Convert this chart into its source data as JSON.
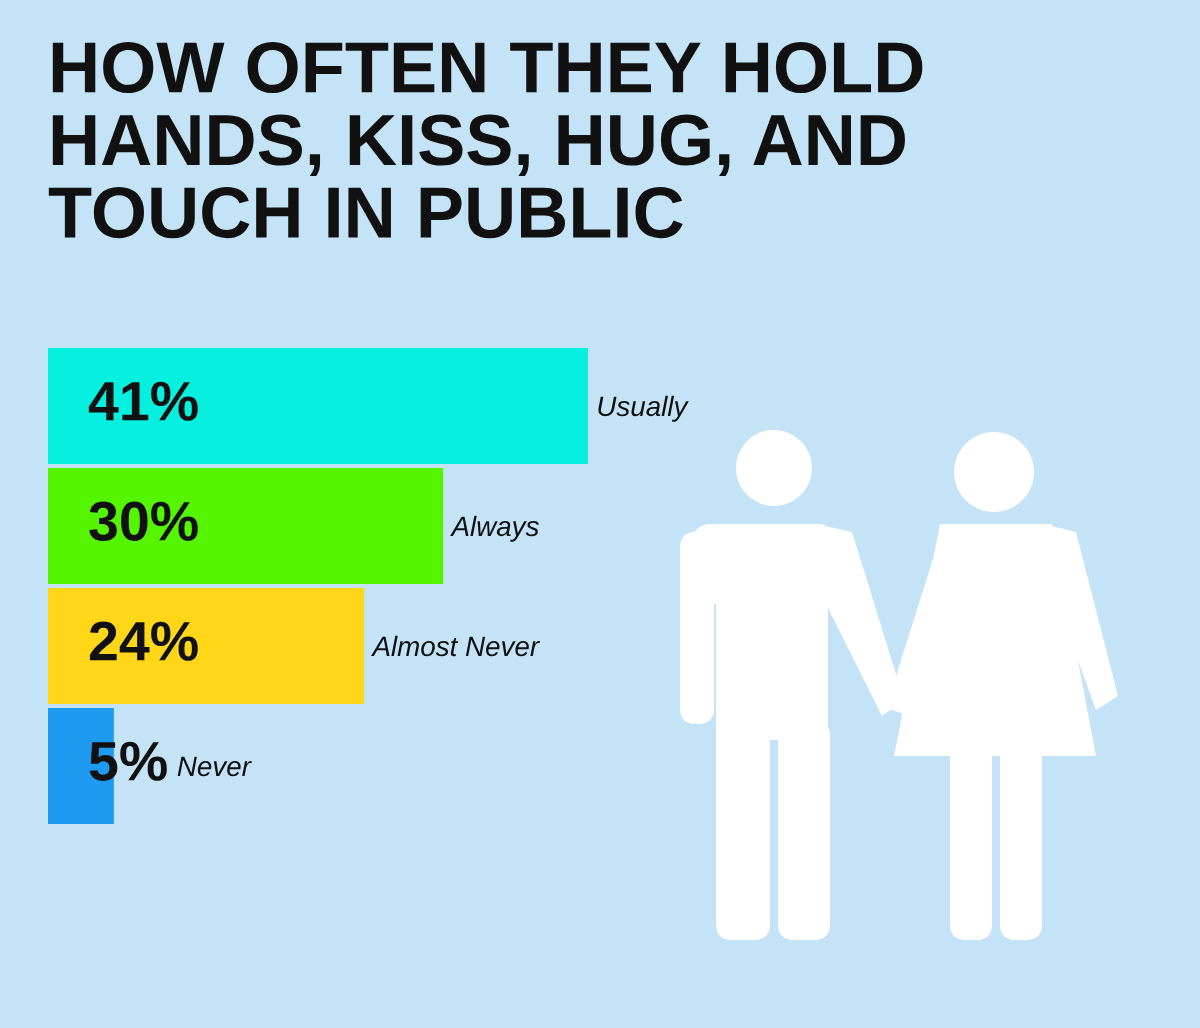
{
  "chart_data": {
    "type": "bar",
    "orientation": "horizontal",
    "title": "HOW OFTEN THEY HOLD\nHANDS, KISS, HUG, AND\nTOUCH IN PUBLIC",
    "categories": [
      "Usually",
      "Always",
      "Almost Never",
      "Never"
    ],
    "values": [
      41,
      30,
      24,
      5
    ],
    "colors": [
      "#06f0e0",
      "#55f500",
      "#ffd618",
      "#1e9bf0"
    ],
    "value_labels": [
      "41%",
      "30%",
      "24%",
      "5%"
    ],
    "tick_labels": "y"
  }
}
